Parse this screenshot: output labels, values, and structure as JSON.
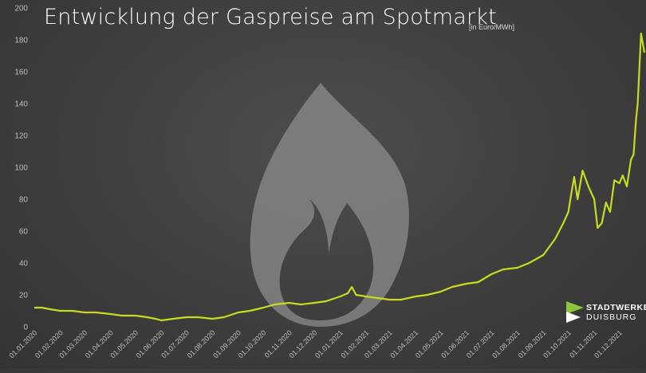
{
  "header": {
    "title": "Entwicklung der Gaspreise am Spotmarkt",
    "unit": "[in Euro/MWh]"
  },
  "logo": {
    "line1": "STADTWERKE",
    "line2": "DUISBURG"
  },
  "colors": {
    "line": "#c8dc1e",
    "axis_text": "#bdbdbd",
    "background": "#3e3e3e",
    "flame": "#8c8c8c",
    "logo_green": "#8cc63f",
    "logo_white": "#ffffff"
  },
  "chart_data": {
    "type": "line",
    "title": "Entwicklung der Gaspreise am Spotmarkt",
    "subtitle": "[in Euro/MWh]",
    "xlabel": "",
    "ylabel": "",
    "ylim": [
      0,
      200
    ],
    "yticks": [
      0,
      20,
      40,
      60,
      80,
      100,
      120,
      140,
      160,
      180,
      200
    ],
    "xlim": [
      "2020-01-01",
      "2021-12-31"
    ],
    "xticks": [
      "01.01.2020",
      "01.02.2020",
      "01.03.2020",
      "01.04.2020",
      "01.05.2020",
      "01.06.2020",
      "01.07.2020",
      "01.08.2020",
      "01.09.2020",
      "01.10.2020",
      "01.11.2020",
      "01.12.2020",
      "01.01.2021",
      "01.02.2021",
      "01.03.2021",
      "01.04.2021",
      "01.05.2021",
      "01.06.2021",
      "01.07.2021",
      "01.08.2021",
      "01.09.2021",
      "01.10.2021",
      "01.11.2021",
      "01.12.2021"
    ],
    "grid": false,
    "legend": "none",
    "series": [
      {
        "x": [
          "2020-01-01",
          "2020-01-10",
          "2020-01-20",
          "2020-02-01",
          "2020-02-15",
          "2020-03-01",
          "2020-03-15",
          "2020-04-01",
          "2020-04-15",
          "2020-05-01",
          "2020-05-15",
          "2020-05-25",
          "2020-06-01",
          "2020-06-15",
          "2020-07-01",
          "2020-07-15",
          "2020-08-01",
          "2020-08-15",
          "2020-09-01",
          "2020-09-15",
          "2020-10-01",
          "2020-10-15",
          "2020-11-01",
          "2020-11-15",
          "2020-12-01",
          "2020-12-15",
          "2021-01-01",
          "2021-01-10",
          "2021-01-15",
          "2021-01-20",
          "2021-02-01",
          "2021-02-15",
          "2021-03-01",
          "2021-03-15",
          "2021-04-01",
          "2021-04-15",
          "2021-05-01",
          "2021-05-15",
          "2021-06-01",
          "2021-06-15",
          "2021-07-01",
          "2021-07-15",
          "2021-08-01",
          "2021-08-15",
          "2021-09-01",
          "2021-09-15",
          "2021-09-25",
          "2021-10-01",
          "2021-10-05",
          "2021-10-08",
          "2021-10-12",
          "2021-10-18",
          "2021-10-25",
          "2021-11-01",
          "2021-11-05",
          "2021-11-10",
          "2021-11-15",
          "2021-11-20",
          "2021-11-25",
          "2021-12-01",
          "2021-12-05",
          "2021-12-10",
          "2021-12-15",
          "2021-12-18",
          "2021-12-21",
          "2021-12-23",
          "2021-12-27",
          "2021-12-31"
        ],
        "y": [
          12,
          12,
          11,
          10,
          10,
          9,
          9,
          8,
          7,
          7,
          6,
          5,
          4,
          5,
          6,
          6,
          5,
          6,
          9,
          10,
          12,
          14,
          15,
          14,
          15,
          16,
          19,
          21,
          25,
          20,
          19,
          18,
          17,
          17,
          19,
          20,
          22,
          25,
          27,
          28,
          33,
          36,
          37,
          40,
          45,
          55,
          65,
          72,
          85,
          94,
          80,
          98,
          88,
          80,
          62,
          65,
          78,
          72,
          92,
          90,
          95,
          88,
          105,
          108,
          130,
          140,
          184,
          172
        ]
      }
    ]
  }
}
